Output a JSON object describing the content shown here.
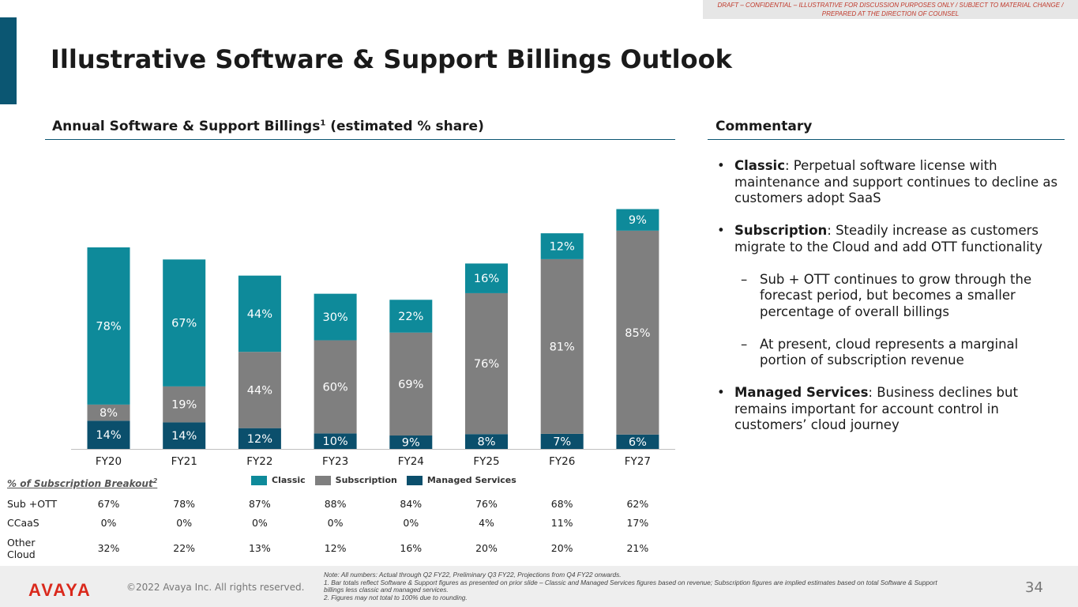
{
  "draft_banner": "DRAFT – CONFIDENTIAL – ILLUSTRATIVE FOR DISCUSSION PURPOSES ONLY / SUBJECT TO MATERIAL CHANGE / PREPARED AT THE DIRECTION OF COUNSEL",
  "title": "Illustrative Software & Support Billings Outlook",
  "chart_heading": "Annual Software & Support Billings",
  "chart_heading_sup": "1",
  "chart_heading_suffix": " (estimated % share)",
  "commentary_heading": "Commentary",
  "colors": {
    "classic": "#0e8a9a",
    "subscription": "#7f7f7f",
    "managed": "#0b4f6c",
    "accent": "#0b5672",
    "brand_red": "#da291c"
  },
  "chart_data": {
    "type": "bar",
    "stacked": true,
    "title": "Annual Software & Support Billings (estimated % share)",
    "categories": [
      "FY20",
      "FY21",
      "FY22",
      "FY23",
      "FY24",
      "FY25",
      "FY26",
      "FY27"
    ],
    "relative_totals": [
      100,
      94,
      86,
      77,
      74,
      92,
      107,
      119
    ],
    "series": [
      {
        "name": "Managed Services",
        "values": [
          14,
          14,
          12,
          10,
          9,
          8,
          7,
          6
        ],
        "labels": [
          "14%",
          "14%",
          "12%",
          "10%",
          "9%",
          "8%",
          "7%",
          "6%"
        ]
      },
      {
        "name": "Subscription",
        "values": [
          8,
          19,
          44,
          60,
          69,
          76,
          81,
          85
        ],
        "labels": [
          "8%",
          "19%",
          "44%",
          "60%",
          "69%",
          "76%",
          "81%",
          "85%"
        ]
      },
      {
        "name": "Classic",
        "values": [
          78,
          67,
          44,
          30,
          22,
          16,
          12,
          9
        ],
        "labels": [
          "78%",
          "67%",
          "44%",
          "30%",
          "22%",
          "16%",
          "12%",
          "9%"
        ]
      }
    ],
    "legend": [
      "Classic",
      "Subscription",
      "Managed Services"
    ],
    "legend_position": "bottom",
    "xlabel": "",
    "ylabel": ""
  },
  "breakout": {
    "title": "% of Subscription Breakout",
    "title_sup": "2",
    "rows": [
      {
        "label": "Sub +OTT",
        "values": [
          "67%",
          "78%",
          "87%",
          "88%",
          "84%",
          "76%",
          "68%",
          "62%"
        ]
      },
      {
        "label": "CCaaS",
        "values": [
          "0%",
          "0%",
          "0%",
          "0%",
          "0%",
          "4%",
          "11%",
          "17%"
        ]
      },
      {
        "label": "Other Cloud",
        "values": [
          "32%",
          "22%",
          "13%",
          "12%",
          "16%",
          "20%",
          "20%",
          "21%"
        ]
      }
    ]
  },
  "commentary": {
    "items": [
      {
        "bold": "Classic",
        "text": ": Perpetual software license with maintenance and support continues to decline as customers adopt SaaS"
      },
      {
        "bold": "Subscription",
        "text": ": Steadily increase as customers migrate to the Cloud and add OTT functionality"
      }
    ],
    "subitems": [
      "Sub + OTT continues to grow through the forecast period, but becomes a smaller percentage of overall billings",
      "At present, cloud represents a marginal portion of subscription revenue"
    ],
    "last_item": {
      "bold": "Managed Services",
      "text": ": Business declines but remains important for account control in customers’ cloud journey"
    }
  },
  "footer": {
    "logo": "AVAYA",
    "copyright": "©2022 Avaya Inc. All rights reserved.",
    "notes": [
      "Note: All numbers: Actual through Q2 FY22, Preliminary Q3 FY22, Projections from Q4 FY22 onwards.",
      "1. Bar totals reflect Software & Support figures as presented on prior slide – Classic and Managed Services figures based on revenue; Subscription figures are implied estimates based on total Software & Support billings less classic and managed services.",
      "2. Figures may not total to 100% due to rounding."
    ],
    "page_number": "34"
  }
}
